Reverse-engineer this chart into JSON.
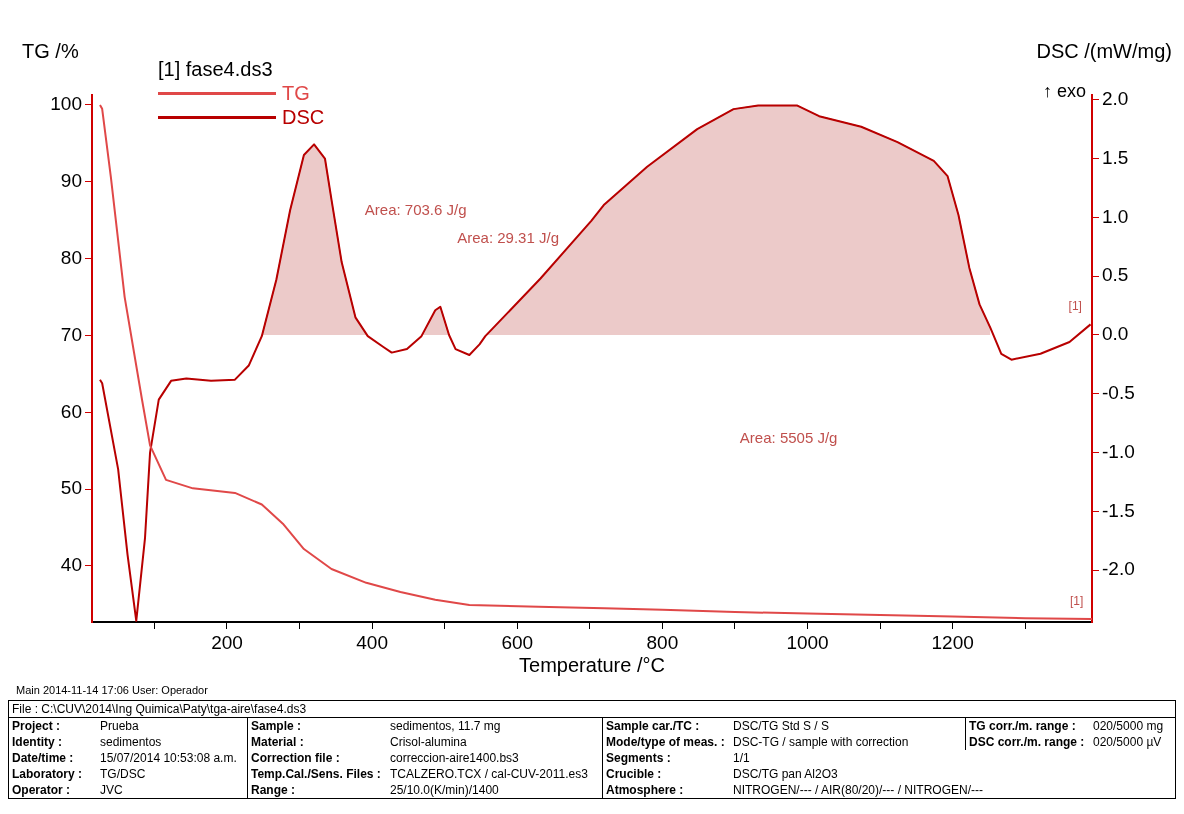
{
  "chart_data": {
    "type": "line",
    "xlabel": "Temperature /°C",
    "ylabel": "TG /%",
    "y2label": "DSC /(mW/mg)",
    "legend_title": "[1] fase4.ds3",
    "legend": "top left",
    "xlim": [
      14,
      1392
    ],
    "ylim": [
      32.7,
      101.3
    ],
    "y2lim": [
      -2.44,
      2.04
    ],
    "xticks": [
      {
        "value": 100,
        "label": null
      },
      200,
      {
        "value": 300,
        "label": null
      },
      400,
      {
        "value": 500,
        "label": null
      },
      600,
      {
        "value": 700,
        "label": null
      },
      800,
      {
        "value": 900,
        "label": null
      },
      1000,
      {
        "value": 1100,
        "label": null
      },
      1200,
      {
        "value": 1300,
        "label": null
      }
    ],
    "yticks": [
      40,
      50,
      60,
      70,
      80,
      90,
      100
    ],
    "y2ticks": [
      {
        "value": -2,
        "label": "-2.0"
      },
      {
        "value": -1.5,
        "label": "-1.5"
      },
      {
        "value": -1,
        "label": "-1.0"
      },
      {
        "value": -0.5,
        "label": "-0.5"
      },
      {
        "value": 0,
        "label": "0.0"
      },
      {
        "value": 0.5,
        "label": "0.5"
      },
      {
        "value": 1,
        "label": "1.0"
      },
      {
        "value": 1.5,
        "label": "1.5"
      },
      {
        "value": 2,
        "label": "2.0"
      }
    ],
    "series": [
      {
        "name": "TG",
        "color": "#e04848",
        "x": [
          25,
          28,
          40,
          59,
          83,
          94,
          116,
          153,
          211,
          248,
          277,
          306,
          344,
          392,
          439,
          487,
          534,
          629,
          720,
          800,
          900,
          1000,
          1100,
          1200,
          1300,
          1392
        ],
        "values": [
          100,
          99.5,
          90.6,
          75,
          61.6,
          55.7,
          51.2,
          50.1,
          49.5,
          48,
          45.5,
          42.2,
          39.6,
          37.8,
          36.6,
          35.6,
          34.9,
          34.7,
          34.5,
          34.3,
          34.0,
          33.8,
          33.6,
          33.4,
          33.2,
          33.1
        ]
      },
      {
        "name": "DSC",
        "color": "#b80000",
        "axis": "y2",
        "x": [
          25,
          28,
          50,
          63,
          75,
          87,
          94,
          106,
          123,
          144,
          178,
          211,
          230,
          248,
          268,
          287,
          306,
          320,
          335,
          344,
          358,
          377,
          394,
          415,
          427,
          448,
          468,
          487,
          494,
          506,
          515,
          534,
          548,
          556,
          632,
          702,
          720,
          779,
          848,
          898,
          932,
          986,
          1016,
          1074,
          1124,
          1174,
          1193,
          1208,
          1223,
          1237,
          1252,
          1267,
          1281,
          1321,
          1361,
          1390
        ],
        "values": [
          -0.38,
          -0.41,
          -1.14,
          -1.87,
          -2.43,
          -1.73,
          -1.0,
          -0.55,
          -0.39,
          -0.37,
          -0.39,
          -0.38,
          -0.26,
          -0.01,
          0.47,
          1.06,
          1.53,
          1.62,
          1.5,
          1.15,
          0.62,
          0.15,
          -0.01,
          -0.1,
          -0.15,
          -0.12,
          -0.01,
          0.21,
          0.24,
          0,
          -0.12,
          -0.17,
          -0.08,
          -0.01,
          0.48,
          0.97,
          1.11,
          1.43,
          1.75,
          1.92,
          1.95,
          1.95,
          1.86,
          1.77,
          1.64,
          1.48,
          1.35,
          1.02,
          0.57,
          0.26,
          0.06,
          -0.16,
          -0.21,
          -0.16,
          -0.06,
          0.09
        ]
      },
      {
        "type": "area",
        "color": "#c0504d",
        "axis": "y2",
        "x": [
          248,
          268,
          287,
          306,
          320,
          335,
          344,
          358,
          377,
          394
        ],
        "values": [
          -0.01,
          0.47,
          1.06,
          1.53,
          1.62,
          1.5,
          1.15,
          0.62,
          0.15,
          -0.01
        ]
      },
      {
        "type": "area",
        "color": "#c0504d",
        "axis": "y2",
        "x": [
          468,
          487,
          494,
          506
        ],
        "values": [
          -0.01,
          0.21,
          0.24,
          0
        ]
      },
      {
        "type": "area",
        "color": "#c0504d",
        "axis": "y2",
        "x": [
          556,
          632,
          702,
          720,
          779,
          848,
          898,
          932,
          986,
          1016,
          1074,
          1124,
          1174,
          1193,
          1208,
          1223,
          1237,
          1252
        ],
        "values": [
          -0.01,
          0.48,
          0.97,
          1.11,
          1.43,
          1.75,
          1.92,
          1.95,
          1.95,
          1.86,
          1.77,
          1.64,
          1.48,
          1.35,
          1.02,
          0.57,
          0.26,
          0.06
        ]
      }
    ],
    "annotations": [
      "Area: 703.6 J/g",
      "Area: 29.31 J/g",
      "Area: 5505 J/g",
      "[1]",
      "[1]",
      "↑ exo",
      "Main   2014-11-14 17:06   User: Operador",
      "File :  C:\\CUV\\2014\\Ing Quimica\\Paty\\tga-aire\\fase4.ds3",
      "Project :",
      "Identity :",
      "Date/time :",
      "Laboratory :",
      "Operator :",
      "Prueba",
      "sedimentos",
      "15/07/2014 10:53:08 a.m.",
      "TG/DSC",
      "JVC",
      "Sample :",
      "Material :",
      "Correction file :",
      "Temp.Cal./Sens. Files :",
      "Range :",
      "sedimentos, 11.7 mg",
      "Crisol-alumina",
      "correccion-aire1400.bs3",
      "TCALZERO.TCX / cal-CUV-2011.es3",
      "25/10.0(K/min)/1400",
      "Sample car./TC :",
      "Mode/type of meas. :",
      "Segments :",
      "Crucible :",
      "Atmosphere :",
      "DSC/TG Std S / S",
      "DSC-TG / sample with correction",
      "1/1",
      "DSC/TG pan Al2O3",
      "NITROGEN/--- / AIR(80/20)/--- / NITROGEN/---",
      "TG corr./m. range :",
      "020/5000 mg",
      "DSC corr./m. range :",
      "020/5000 µV"
    ]
  }
}
